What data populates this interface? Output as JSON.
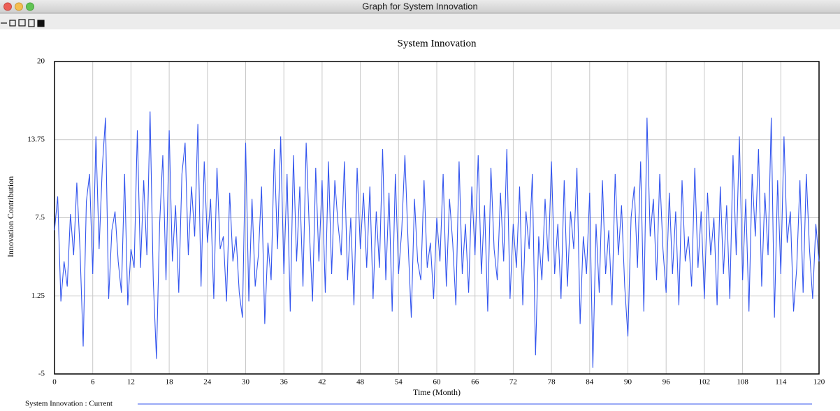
{
  "window": {
    "title": "Graph for System Innovation"
  },
  "chart_data": {
    "type": "line",
    "title": "System Innovation",
    "x_label": "Time (Month)",
    "y_label": "Innovation Contribution",
    "xlim": [
      0,
      120
    ],
    "xticks": [
      0,
      6,
      12,
      18,
      24,
      30,
      36,
      42,
      48,
      54,
      60,
      66,
      72,
      78,
      84,
      90,
      96,
      102,
      108,
      114,
      120
    ],
    "ylim": [
      -5,
      20
    ],
    "yticks": [
      -5,
      1.25,
      7.5,
      13.75,
      20
    ],
    "grid": true,
    "x": [
      0,
      0.5,
      1,
      1.5,
      2,
      2.5,
      3,
      3.5,
      4,
      4.5,
      5,
      5.5,
      6,
      6.5,
      7,
      7.5,
      8,
      8.5,
      9,
      9.5,
      10,
      10.5,
      11,
      11.5,
      12,
      12.5,
      13,
      13.5,
      14,
      14.5,
      15,
      15.5,
      16,
      16.5,
      17,
      17.5,
      18,
      18.5,
      19,
      19.5,
      20,
      20.5,
      21,
      21.5,
      22,
      22.5,
      23,
      23.5,
      24,
      24.5,
      25,
      25.5,
      26,
      26.5,
      27,
      27.5,
      28,
      28.5,
      29,
      29.5,
      30,
      30.5,
      31,
      31.5,
      32,
      32.5,
      33,
      33.5,
      34,
      34.5,
      35,
      35.5,
      36,
      36.5,
      37,
      37.5,
      38,
      38.5,
      39,
      39.5,
      40,
      40.5,
      41,
      41.5,
      42,
      42.5,
      43,
      43.5,
      44,
      44.5,
      45,
      45.5,
      46,
      46.5,
      47,
      47.5,
      48,
      48.5,
      49,
      49.5,
      50,
      50.5,
      51,
      51.5,
      52,
      52.5,
      53,
      53.5,
      54,
      54.5,
      55,
      55.5,
      56,
      56.5,
      57,
      57.5,
      58,
      58.5,
      59,
      59.5,
      60,
      60.5,
      61,
      61.5,
      62,
      62.5,
      63,
      63.5,
      64,
      64.5,
      65,
      65.5,
      66,
      66.5,
      67,
      67.5,
      68,
      68.5,
      69,
      69.5,
      70,
      70.5,
      71,
      71.5,
      72,
      72.5,
      73,
      73.5,
      74,
      74.5,
      75,
      75.5,
      76,
      76.5,
      77,
      77.5,
      78,
      78.5,
      79,
      79.5,
      80,
      80.5,
      81,
      81.5,
      82,
      82.5,
      83,
      83.5,
      84,
      84.5,
      85,
      85.5,
      86,
      86.5,
      87,
      87.5,
      88,
      88.5,
      89,
      89.5,
      90,
      90.5,
      91,
      91.5,
      92,
      92.5,
      93,
      93.5,
      94,
      94.5,
      95,
      95.5,
      96,
      96.5,
      97,
      97.5,
      98,
      98.5,
      99,
      99.5,
      100,
      100.5,
      101,
      101.5,
      102,
      102.5,
      103,
      103.5,
      104,
      104.5,
      105,
      105.5,
      106,
      106.5,
      107,
      107.5,
      108,
      108.5,
      109,
      109.5,
      110,
      110.5,
      111,
      111.5,
      112,
      112.5,
      113,
      113.5,
      114,
      114.5,
      115,
      115.5,
      116,
      116.5,
      117,
      117.5,
      118,
      118.5,
      119,
      119.5,
      120
    ],
    "series": [
      {
        "name": "System Innovation : Current",
        "color": "#3355ee",
        "values": [
          6.5,
          9.2,
          0.8,
          4.0,
          2.0,
          7.8,
          4.5,
          10.3,
          5.0,
          -2.8,
          8.8,
          11.0,
          3.0,
          14.0,
          5.0,
          11.5,
          15.5,
          1.0,
          6.5,
          8.0,
          4.0,
          1.5,
          11.0,
          0.5,
          5.0,
          3.5,
          14.5,
          3.5,
          10.5,
          4.5,
          16.0,
          2.5,
          -3.8,
          7.0,
          12.5,
          2.5,
          14.5,
          4.0,
          8.5,
          1.5,
          11.0,
          13.5,
          4.5,
          10.0,
          6.0,
          15.0,
          2.0,
          12.0,
          5.5,
          9.0,
          1.0,
          11.5,
          5.0,
          6.0,
          0.8,
          9.5,
          4.0,
          6.0,
          1.5,
          -0.5,
          13.5,
          0.8,
          9.0,
          2.0,
          4.5,
          10.0,
          -1.0,
          5.5,
          2.5,
          13.0,
          5.0,
          14.0,
          3.0,
          11.0,
          0.0,
          12.5,
          4.0,
          10.0,
          2.0,
          13.5,
          6.5,
          0.8,
          11.5,
          4.0,
          10.5,
          1.5,
          12.0,
          3.0,
          10.5,
          7.0,
          4.5,
          12.0,
          2.5,
          7.5,
          0.5,
          11.5,
          5.0,
          9.5,
          3.5,
          10.0,
          1.0,
          8.0,
          3.5,
          13.0,
          2.5,
          9.5,
          0.0,
          11.0,
          3.0,
          6.5,
          12.5,
          5.5,
          -0.5,
          9.0,
          4.0,
          2.5,
          10.5,
          3.5,
          5.5,
          1.0,
          7.5,
          4.0,
          11.0,
          2.0,
          9.0,
          5.5,
          0.5,
          12.0,
          3.0,
          7.0,
          1.5,
          10.0,
          4.5,
          12.5,
          3.0,
          8.5,
          0.0,
          11.5,
          5.0,
          2.5,
          9.5,
          4.0,
          13.0,
          1.0,
          7.0,
          3.5,
          10.0,
          0.5,
          8.0,
          5.0,
          11.0,
          -3.5,
          6.0,
          2.5,
          9.0,
          4.0,
          12.0,
          3.0,
          7.0,
          1.0,
          10.5,
          2.0,
          8.0,
          5.0,
          11.5,
          -1.0,
          6.0,
          3.0,
          9.5,
          -4.5,
          7.0,
          1.5,
          10.5,
          3.0,
          6.5,
          0.5,
          11.0,
          4.5,
          8.5,
          2.0,
          -2.0,
          7.5,
          10.0,
          3.5,
          12.0,
          0.0,
          15.5,
          6.0,
          9.0,
          2.5,
          11.0,
          5.0,
          1.5,
          9.5,
          3.0,
          8.0,
          0.5,
          10.5,
          4.0,
          6.0,
          2.0,
          11.5,
          3.5,
          8.0,
          1.0,
          9.5,
          4.5,
          7.5,
          0.5,
          10.0,
          3.0,
          8.5,
          1.0,
          12.5,
          4.5,
          14.0,
          2.5,
          9.0,
          0.0,
          11.0,
          6.0,
          13.0,
          2.0,
          9.5,
          4.5,
          15.5,
          -0.5,
          10.5,
          3.0,
          14.0,
          5.5,
          8.0,
          0.0,
          3.5,
          10.5,
          1.5,
          11.0,
          5.0,
          1.0,
          7.0,
          4.0
        ]
      }
    ]
  }
}
